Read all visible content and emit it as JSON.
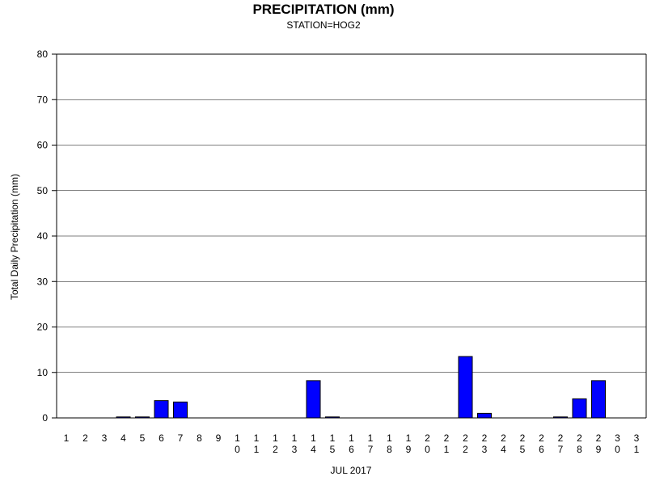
{
  "chart_data": {
    "type": "bar",
    "title": "PRECIPITATION (mm)",
    "subtitle": "STATION=HOG2",
    "xlabel": "JUL 2017",
    "ylabel": "Total Daily Precipitation (mm)",
    "ylim": [
      0,
      80
    ],
    "yticks": [
      "0",
      "10",
      "20",
      "30",
      "40",
      "50",
      "60",
      "70",
      "80"
    ],
    "grid": true,
    "bar_color": "#0000ff",
    "categories": [
      "1",
      "2",
      "3",
      "4",
      "5",
      "6",
      "7",
      "8",
      "9",
      "10",
      "11",
      "12",
      "13",
      "14",
      "15",
      "16",
      "17",
      "18",
      "19",
      "20",
      "21",
      "22",
      "23",
      "24",
      "25",
      "26",
      "27",
      "28",
      "29",
      "30",
      "31"
    ],
    "values": [
      0,
      0,
      0,
      0.2,
      0.2,
      3.8,
      3.5,
      0,
      0,
      0,
      0,
      0,
      0,
      8.2,
      0.2,
      0,
      0,
      0,
      0,
      0,
      0,
      13.5,
      1.0,
      0,
      0,
      0,
      0.2,
      4.2,
      8.2,
      0,
      0
    ]
  }
}
